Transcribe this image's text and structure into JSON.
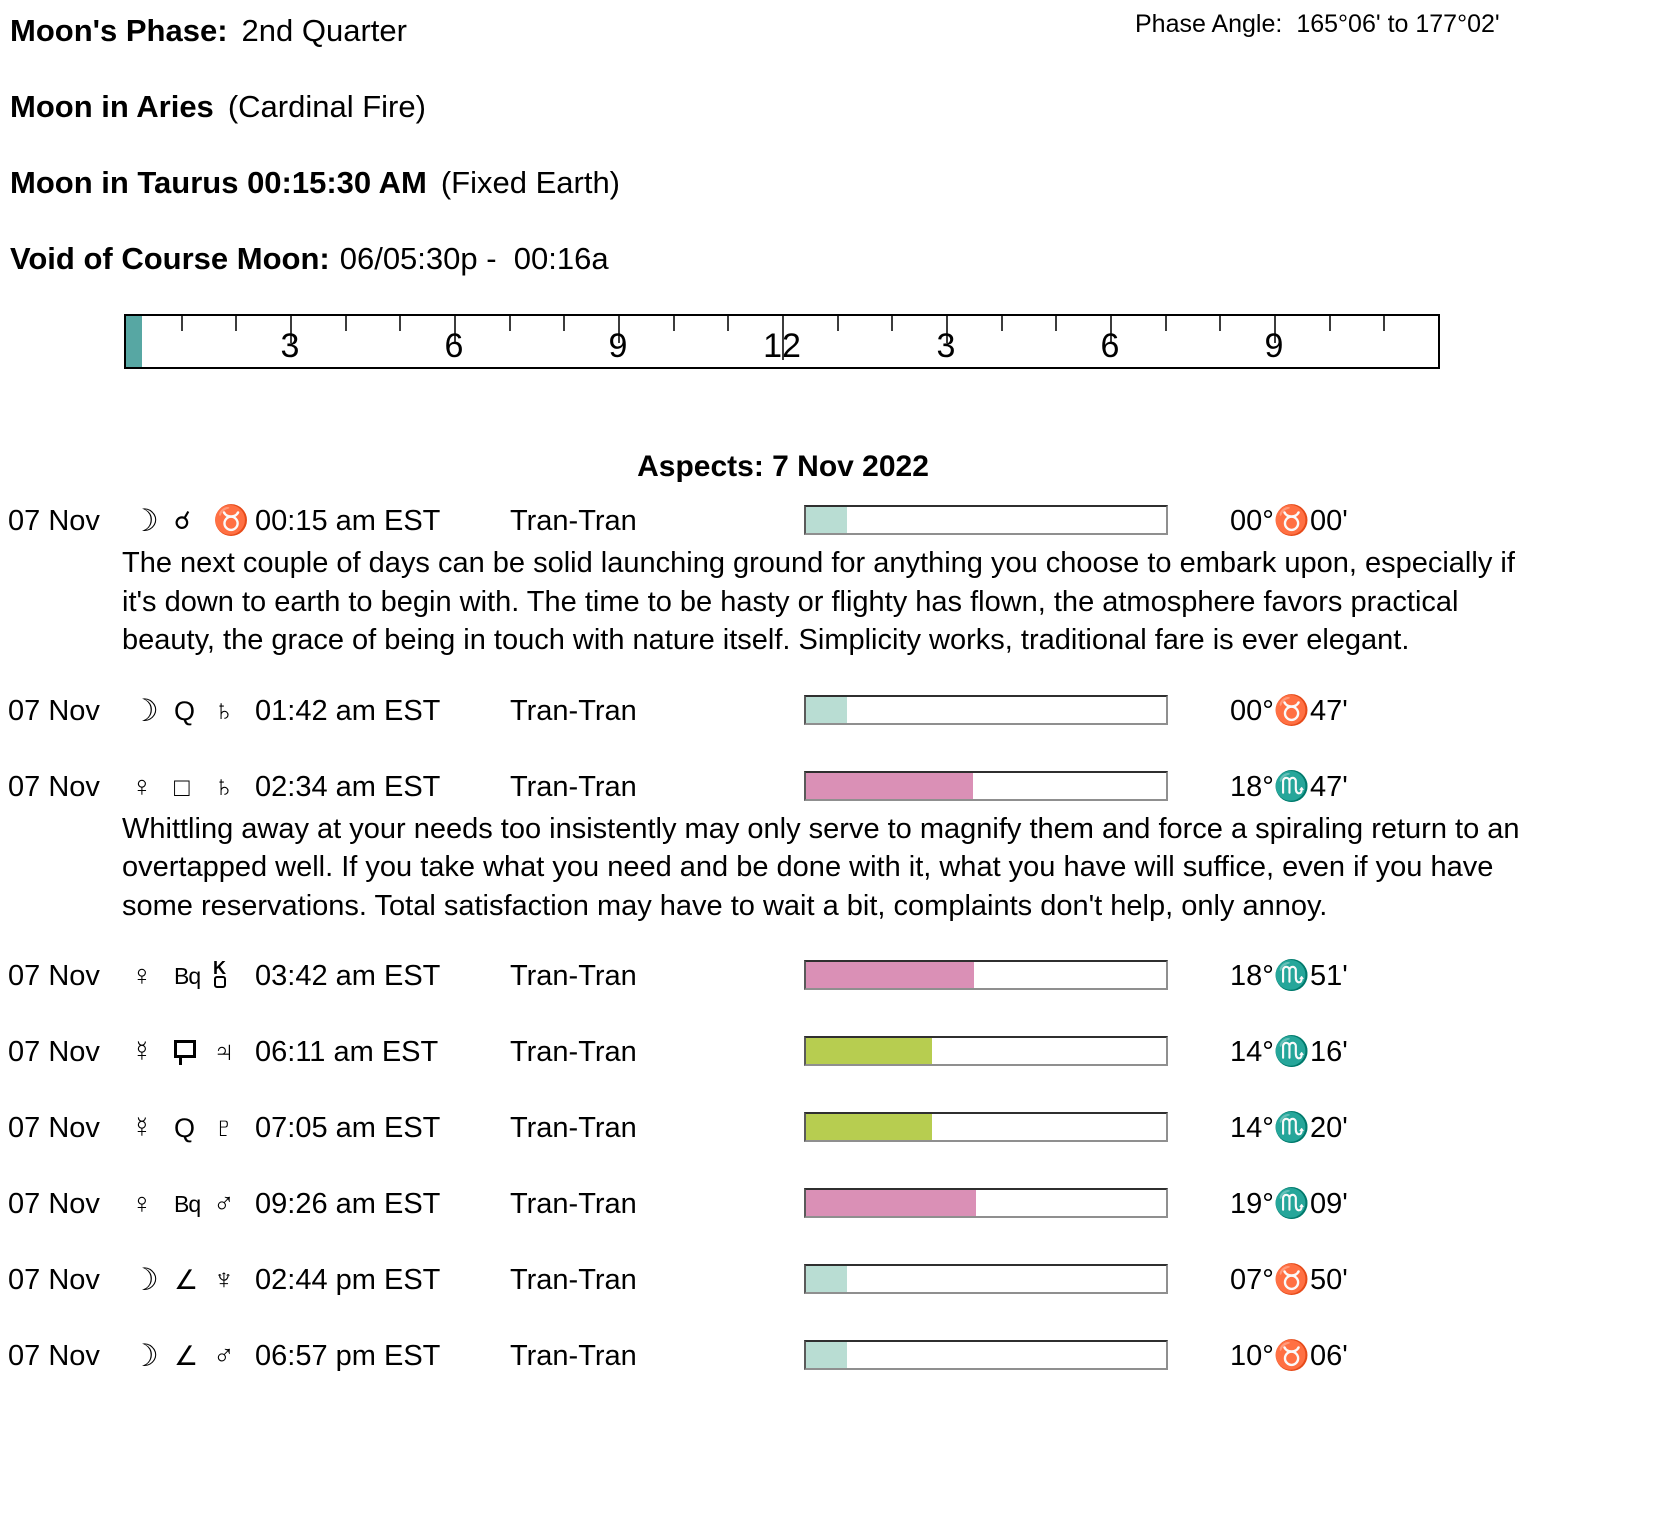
{
  "header": {
    "moon_phase_label": "Moon's Phase:",
    "moon_phase_value": "2nd Quarter",
    "phase_angle_label": "Phase Angle:",
    "phase_angle_value": "165°06' to 177°02'",
    "moon_sign1_label": "Moon in Aries",
    "moon_sign1_detail": "(Cardinal Fire)",
    "moon_sign2_label": "Moon in Taurus 00:15:30 AM",
    "moon_sign2_detail": "(Fixed Earth)",
    "voc_label": "Void of Course Moon:",
    "voc_value": "06/05:30p -  00:16a"
  },
  "ruler": {
    "hours": 24,
    "label_every": 3,
    "labels": [
      "3",
      "6",
      "9",
      "12",
      "3",
      "6",
      "9"
    ],
    "marker_color": "#57a7a3",
    "marker_pct": 1.2
  },
  "aspects": {
    "title": "Aspects: 7 Nov 2022",
    "colors": {
      "moon": "#b9ddd3",
      "venus": "#da90b6",
      "mercury": "#b7cd50"
    },
    "rows": [
      {
        "date": "07 Nov",
        "planet1": {
          "icon": "moon-icon",
          "glyph": "☽"
        },
        "aspect": {
          "icon": "conjunction-icon",
          "glyph": "☌"
        },
        "planet2": {
          "icon": "taurus-icon",
          "glyph": "♉"
        },
        "time": "00:15 am EST",
        "kind": "Tran-Tran",
        "bar": {
          "color": "#b9ddd3",
          "fill_pct": 11.3
        },
        "degree": "00°♉00'",
        "note": "The next couple of days can be solid launching ground for anything you choose to embark upon, especially if it's down to earth to begin with. The time to be hasty or flighty has flown, the atmosphere favors practical beauty, the grace of being in touch with nature itself. Simplicity works, traditional fare is ever elegant."
      },
      {
        "date": "07 Nov",
        "planet1": {
          "icon": "moon-icon",
          "glyph": "☽"
        },
        "aspect": {
          "icon": "quintile-icon",
          "glyph": "Q"
        },
        "planet2": {
          "icon": "saturn-icon",
          "glyph": "♄"
        },
        "time": "01:42 am EST",
        "kind": "Tran-Tran",
        "bar": {
          "color": "#b9ddd3",
          "fill_pct": 11.3
        },
        "degree": "00°♉47'",
        "note": ""
      },
      {
        "date": "07 Nov",
        "planet1": {
          "icon": "venus-icon",
          "glyph": "♀"
        },
        "aspect": {
          "icon": "square-icon",
          "glyph": "□"
        },
        "planet2": {
          "icon": "saturn-icon",
          "glyph": "♄"
        },
        "time": "02:34 am EST",
        "kind": "Tran-Tran",
        "bar": {
          "color": "#da90b6",
          "fill_pct": 46.5
        },
        "degree": "18°♏47'",
        "note": "Whittling away at your needs too insistently may only serve to magnify them and force a spiraling return to an overtapped well. If you take what you need and be done with it, what you have will suffice, even if you have some reservations. Total satisfaction may have to wait a bit, complaints don't help, only annoy."
      },
      {
        "date": "07 Nov",
        "planet1": {
          "icon": "venus-icon",
          "glyph": "♀"
        },
        "aspect": {
          "icon": "biquintile-icon",
          "glyph": "Bq"
        },
        "planet2": {
          "icon": "chiron-icon",
          "glyph": "K"
        },
        "time": "03:42 am EST",
        "kind": "Tran-Tran",
        "bar": {
          "color": "#da90b6",
          "fill_pct": 46.6
        },
        "degree": "18°♏51'",
        "note": ""
      },
      {
        "date": "07 Nov",
        "planet1": {
          "icon": "mercury-icon",
          "glyph": "☿"
        },
        "aspect": {
          "icon": "sesquiquadrate-icon",
          "glyph": ""
        },
        "planet2": {
          "icon": "jupiter-icon",
          "glyph": "♃"
        },
        "time": "06:11 am EST",
        "kind": "Tran-Tran",
        "bar": {
          "color": "#b7cd50",
          "fill_pct": 35.0
        },
        "degree": "14°♏16'",
        "note": ""
      },
      {
        "date": "07 Nov",
        "planet1": {
          "icon": "mercury-icon",
          "glyph": "☿"
        },
        "aspect": {
          "icon": "quintile-icon",
          "glyph": "Q"
        },
        "planet2": {
          "icon": "pluto-icon",
          "glyph": "♇"
        },
        "time": "07:05 am EST",
        "kind": "Tran-Tran",
        "bar": {
          "color": "#b7cd50",
          "fill_pct": 35.1
        },
        "degree": "14°♏20'",
        "note": ""
      },
      {
        "date": "07 Nov",
        "planet1": {
          "icon": "venus-icon",
          "glyph": "♀"
        },
        "aspect": {
          "icon": "biquintile-icon",
          "glyph": "Bq"
        },
        "planet2": {
          "icon": "mars-icon",
          "glyph": "♂"
        },
        "time": "09:26 am EST",
        "kind": "Tran-Tran",
        "bar": {
          "color": "#da90b6",
          "fill_pct": 47.3
        },
        "degree": "19°♏09'",
        "note": ""
      },
      {
        "date": "07 Nov",
        "planet1": {
          "icon": "moon-icon",
          "glyph": "☽"
        },
        "aspect": {
          "icon": "semisquare-icon",
          "glyph": "∠"
        },
        "planet2": {
          "icon": "neptune-icon",
          "glyph": "♆"
        },
        "time": "02:44 pm EST",
        "kind": "Tran-Tran",
        "bar": {
          "color": "#b9ddd3",
          "fill_pct": 11.3
        },
        "degree": "07°♉50'",
        "note": ""
      },
      {
        "date": "07 Nov",
        "planet1": {
          "icon": "moon-icon",
          "glyph": "☽"
        },
        "aspect": {
          "icon": "semisquare-icon",
          "glyph": "∠"
        },
        "planet2": {
          "icon": "mars-icon",
          "glyph": "♂"
        },
        "time": "06:57 pm EST",
        "kind": "Tran-Tran",
        "bar": {
          "color": "#b9ddd3",
          "fill_pct": 11.3
        },
        "degree": "10°♉06'",
        "note": ""
      }
    ]
  }
}
